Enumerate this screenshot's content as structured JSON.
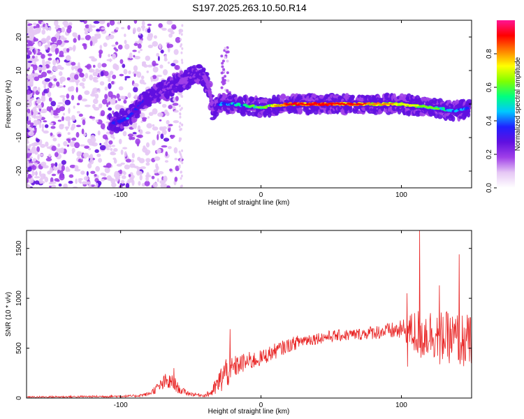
{
  "title": "S197.2025.263.10.50.R14",
  "chart_data": [
    {
      "type": "heatmap",
      "xlabel": "Height of straight line (km)",
      "ylabel": "Frequency (Hz)",
      "xlim": [
        -167,
        150
      ],
      "ylim": [
        -25,
        25
      ],
      "xticks": [
        -100,
        0,
        100
      ],
      "yticks": [
        -20,
        -10,
        0,
        10,
        20
      ],
      "colorbar": {
        "label": "Normalized spectral amplitude",
        "range": [
          0,
          1
        ],
        "ticks": [
          0.0,
          0.2,
          0.4,
          0.6,
          0.8
        ],
        "colors": [
          "#ffffff",
          "#e6c8f5",
          "#a040e8",
          "#6010e0",
          "#2020ff",
          "#00c8ff",
          "#00ff80",
          "#80ff00",
          "#ffff00",
          "#ff8000",
          "#ff0000",
          "#ff1493"
        ]
      },
      "ridge": {
        "x": [
          -107,
          -100,
          -95,
          -90,
          -85,
          -80,
          -75,
          -70,
          -65,
          -60,
          -55,
          -50,
          -45,
          -42,
          -40,
          -38,
          -36,
          -34,
          -32,
          -30,
          -20,
          0,
          20,
          40,
          60,
          80,
          100,
          120,
          140,
          148
        ],
        "freq": [
          -6,
          -5,
          -4,
          -2,
          0,
          2,
          3,
          4,
          5,
          6,
          7,
          8,
          9,
          9,
          8,
          6,
          2,
          -2,
          -1,
          0,
          0,
          -1,
          0,
          0,
          0,
          0,
          0,
          -1,
          -2,
          -1
        ],
        "amplitude": [
          0.35,
          0.4,
          0.4,
          0.35,
          0.35,
          0.3,
          0.3,
          0.25,
          0.25,
          0.25,
          0.2,
          0.25,
          0.3,
          0.25,
          0.2,
          0.15,
          0.15,
          0.2,
          0.35,
          0.4,
          0.5,
          0.6,
          0.85,
          0.9,
          0.85,
          0.8,
          0.7,
          0.6,
          0.45,
          0.4
        ]
      }
    },
    {
      "type": "line",
      "xlabel": "Height of straight line (km)",
      "ylabel": "SNR (10 * v/v)",
      "xlim": [
        -167,
        150
      ],
      "ylim": [
        0,
        1680
      ],
      "xticks": [
        -100,
        0,
        100
      ],
      "yticks": [
        0,
        500,
        1000,
        1500
      ],
      "series": [
        {
          "name": "SNR",
          "color": "#e82020",
          "envelope_x": [
            -167,
            -120,
            -90,
            -80,
            -72,
            -68,
            -62,
            -58,
            -50,
            -40,
            -35,
            -30,
            -26,
            -22,
            -20,
            -15,
            -10,
            -5,
            0,
            10,
            20,
            30,
            40,
            50,
            60,
            70,
            80,
            90,
            100,
            105,
            110,
            115,
            120,
            125,
            130,
            135,
            140,
            145,
            150
          ],
          "envelope_mean": [
            10,
            15,
            20,
            40,
            120,
            160,
            150,
            80,
            40,
            25,
            60,
            150,
            250,
            280,
            300,
            340,
            360,
            380,
            400,
            470,
            530,
            580,
            600,
            620,
            630,
            640,
            660,
            670,
            680,
            680,
            650,
            640,
            660,
            630,
            620,
            600,
            590,
            570,
            560
          ],
          "envelope_spread": [
            8,
            10,
            12,
            20,
            60,
            90,
            80,
            40,
            20,
            15,
            50,
            120,
            180,
            150,
            120,
            100,
            100,
            90,
            80,
            80,
            70,
            70,
            60,
            60,
            60,
            60,
            70,
            80,
            100,
            150,
            250,
            280,
            250,
            250,
            250,
            260,
            270,
            280,
            280
          ],
          "peaks": [
            {
              "x": 113,
              "y": 1680
            },
            {
              "x": 141,
              "y": 1440
            },
            {
              "x": 127,
              "y": 1130
            },
            {
              "x": 104,
              "y": 1050
            },
            {
              "x": -22,
              "y": 690
            },
            {
              "x": -62,
              "y": 300
            }
          ]
        }
      ]
    }
  ]
}
